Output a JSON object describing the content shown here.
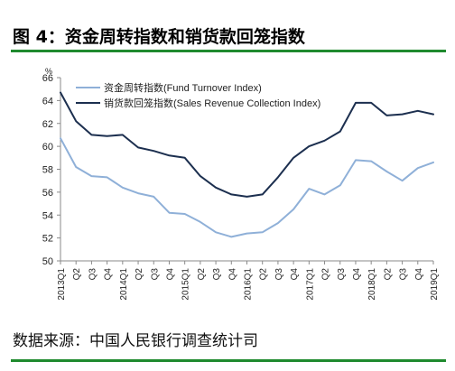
{
  "figure": {
    "title": "图 4：资金周转指数和销货款回笼指数",
    "source": "数据来源：中国人民银行调查统计司"
  },
  "colors": {
    "rule": "#1f8a2e",
    "series1": "#8fb0d8",
    "series2": "#1c2f4f"
  },
  "chart_data": {
    "type": "line",
    "unit_label": "%",
    "ylim": [
      50,
      66
    ],
    "yticks": [
      50,
      52,
      54,
      56,
      58,
      60,
      62,
      64,
      66
    ],
    "grid": false,
    "legend": "top-left",
    "categories": [
      "2013Q1",
      "Q2",
      "Q3",
      "Q4",
      "2014Q1",
      "Q2",
      "Q3",
      "Q4",
      "2015Q1",
      "Q2",
      "Q3",
      "Q4",
      "2016Q1",
      "Q2",
      "Q3",
      "Q4",
      "2017Q1",
      "Q2",
      "Q3",
      "Q4",
      "2018Q1",
      "Q2",
      "Q3",
      "Q4",
      "2019Q1"
    ],
    "series": [
      {
        "name": "资金周转指数(Fund Turnover Index)",
        "values": [
          60.7,
          58.2,
          57.4,
          57.3,
          56.4,
          55.9,
          55.6,
          54.2,
          54.1,
          53.4,
          52.5,
          52.1,
          52.4,
          52.5,
          53.3,
          54.5,
          56.3,
          55.8,
          56.6,
          58.8,
          58.7,
          57.8,
          57.0,
          58.1,
          58.6
        ]
      },
      {
        "name": "销货款回笼指数(Sales Revenue Collection Index)",
        "values": [
          64.7,
          62.2,
          61.0,
          60.9,
          61.0,
          59.9,
          59.6,
          59.2,
          59.0,
          57.4,
          56.4,
          55.8,
          55.6,
          55.8,
          57.3,
          59.0,
          60.0,
          60.5,
          61.3,
          63.8,
          63.8,
          62.7,
          62.8,
          63.1,
          62.8
        ]
      }
    ]
  }
}
